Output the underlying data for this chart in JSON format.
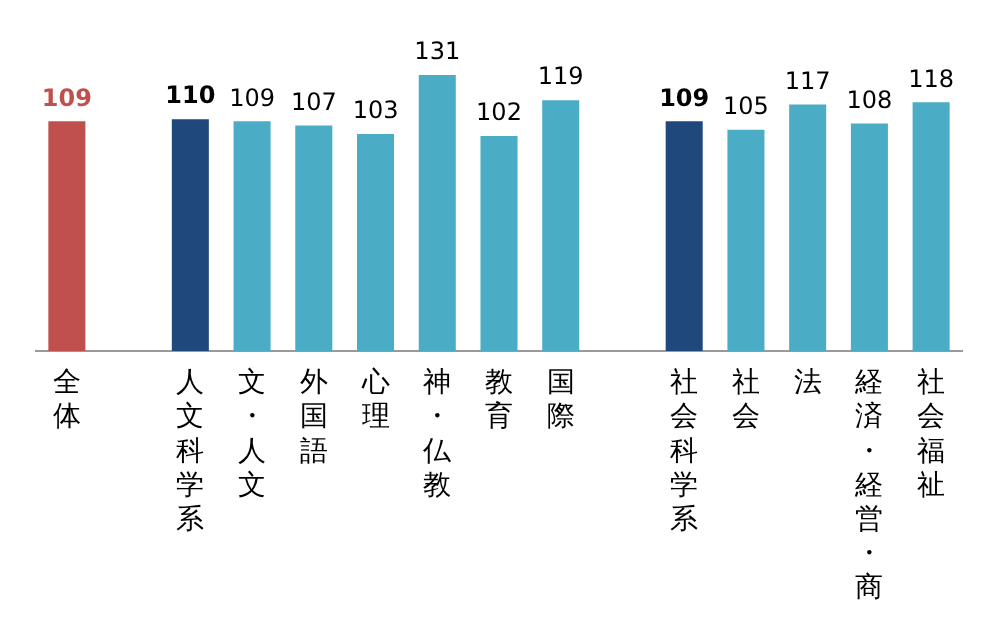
{
  "chart_data": {
    "type": "bar",
    "categories": [
      "全体",
      null,
      "人文科学系",
      "文・人文",
      "外国語",
      "心理",
      "神・仏教",
      "教育",
      "国際",
      null,
      "社会科学系",
      "社会",
      "法",
      "経済・経営・商",
      "社会福祉"
    ],
    "values": [
      109,
      null,
      110,
      109,
      107,
      103,
      131,
      102,
      119,
      null,
      109,
      105,
      117,
      108,
      118
    ],
    "colors": [
      "#c0504d",
      null,
      "#1f497d",
      "#4bacc6",
      "#4bacc6",
      "#4bacc6",
      "#4bacc6",
      "#4bacc6",
      "#4bacc6",
      null,
      "#1f497d",
      "#4bacc6",
      "#4bacc6",
      "#4bacc6",
      "#4bacc6"
    ],
    "data_labels": true,
    "grid": false,
    "legend": false,
    "tick_labels": "x"
  }
}
